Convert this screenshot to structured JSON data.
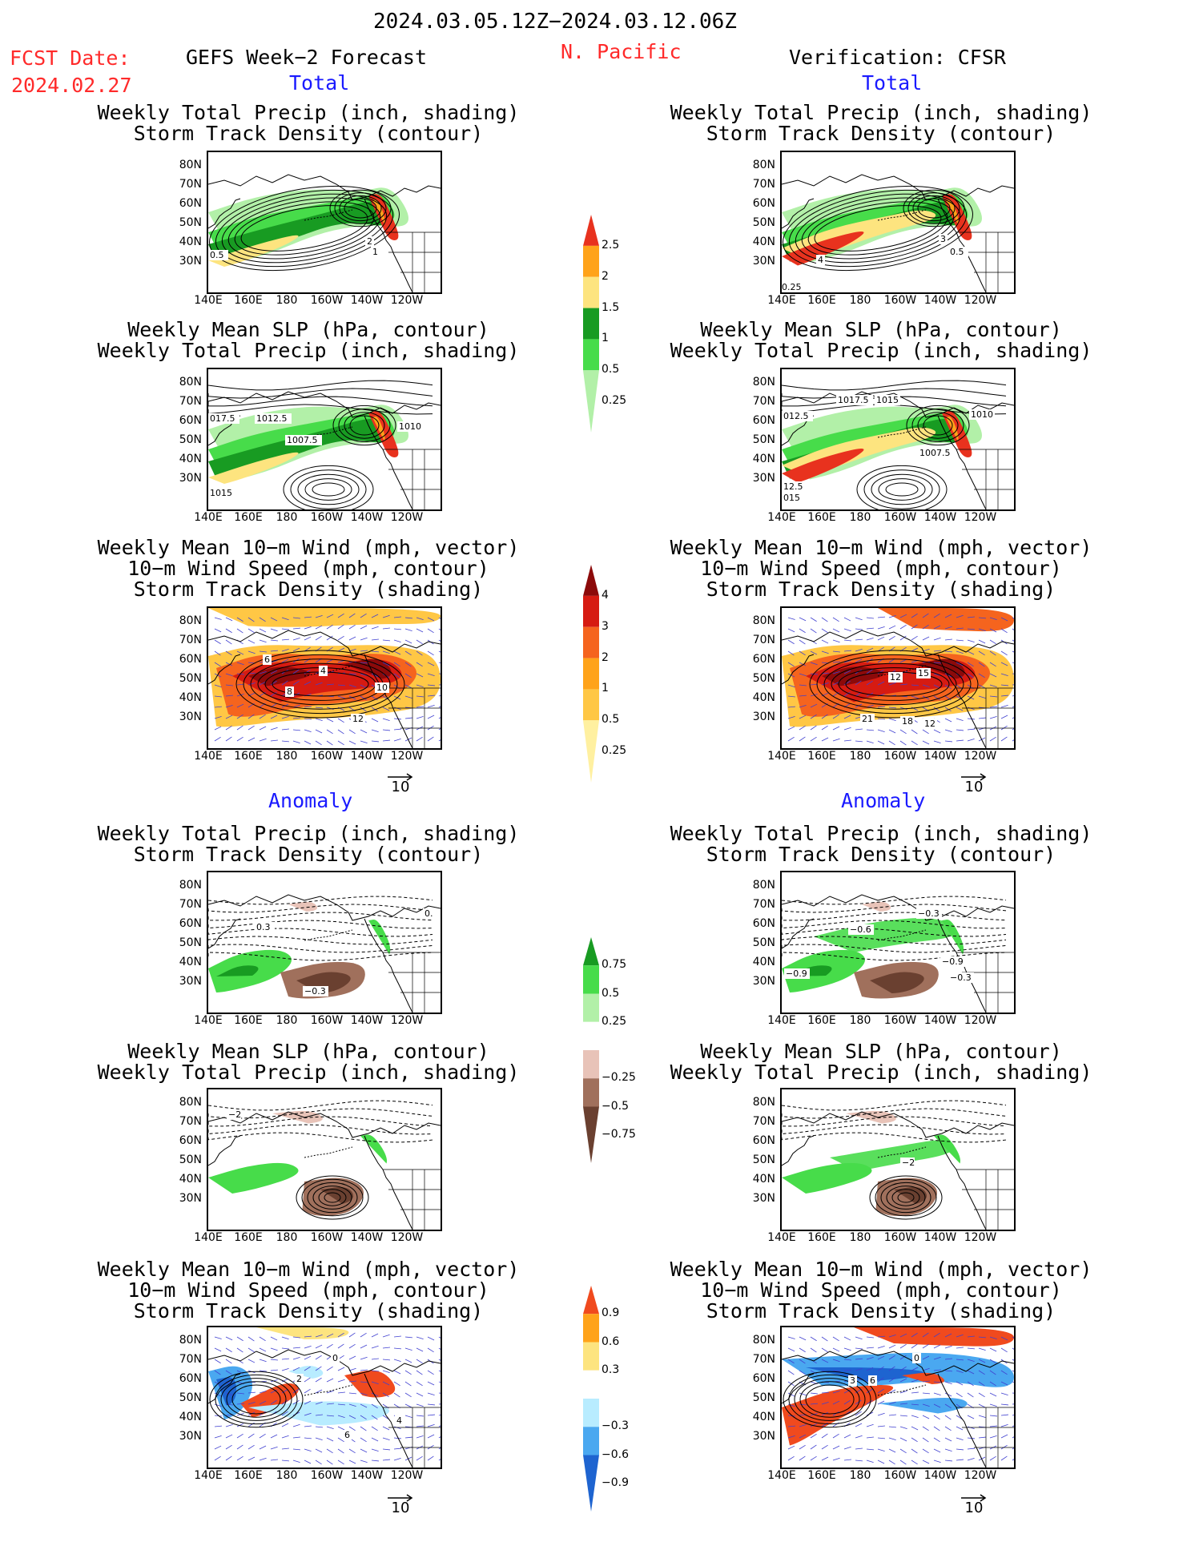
{
  "header": {
    "period": "2024.03.05.12Z−2024.03.12.06Z",
    "fcst_label": "FCST Date:",
    "fcst_date": "2024.02.27",
    "model_title": "GEFS Week−2 Forecast",
    "region": "N. Pacific",
    "verification": "Verification: CFSR"
  },
  "sections": {
    "total": "Total",
    "anomaly": "Anomaly"
  },
  "panel_titles": {
    "precip_track": [
      "Weekly Total Precip (inch, shading)",
      "Storm Track Density (contour)"
    ],
    "slp_precip": [
      "Weekly Mean SLP (hPa, contour)",
      "Weekly Total Precip (inch, shading)"
    ],
    "wind_track": [
      "Weekly Mean 10−m Wind (mph, vector)",
      "10−m Wind Speed (mph, contour)",
      "Storm Track Density (shading)"
    ]
  },
  "axes": {
    "lat": [
      "80N",
      "70N",
      "60N",
      "50N",
      "40N",
      "30N"
    ],
    "lon": [
      "140E",
      "160E",
      "180",
      "160W",
      "140W",
      "120W"
    ]
  },
  "vector_ref": "10",
  "colorbars": {
    "precip_total": {
      "labels": [
        "2.5",
        "2",
        "1.5",
        "1",
        "0.5",
        "0.25"
      ],
      "colors": [
        "#e8321e",
        "#ffa31a",
        "#fde47f",
        "#189b22",
        "#47dc4a",
        "#b2f0a8"
      ]
    },
    "track_total": {
      "labels": [
        "4",
        "3",
        "2",
        "1",
        "0.5",
        "0.25"
      ],
      "colors": [
        "#8c0a0a",
        "#d61b12",
        "#f5641e",
        "#ffa31a",
        "#ffc745",
        "#fff0a0"
      ]
    },
    "precip_anom": {
      "labels": [
        "0.75",
        "0.5",
        "0.25",
        "−0.25",
        "−0.5",
        "−0.75"
      ],
      "colors": [
        "#189b22",
        "#47dc4a",
        "#b2f0a8",
        "#ffffff",
        "#e8c3b8",
        "#a0705c",
        "#6a4030"
      ]
    },
    "track_anom": {
      "labels": [
        "0.9",
        "0.6",
        "0.3",
        "−0.3",
        "−0.6",
        "−0.9"
      ],
      "colors": [
        "#f04a1e",
        "#ffa31a",
        "#fde47f",
        "#ffffff",
        "#b8ecff",
        "#4aa8f0",
        "#1e64d0"
      ]
    }
  },
  "contour_labels": {
    "L1": [
      "0.5",
      "2",
      "1"
    ],
    "R1": [
      "4",
      "3",
      "0.25",
      "0.5"
    ],
    "L2": [
      "017.5",
      "1012.5",
      "1007.5",
      "1010",
      "1015"
    ],
    "R2": [
      "1017.5",
      "1015",
      "012.5",
      "1010",
      "1007.5",
      "12.5",
      "015"
    ],
    "L3": [
      "6",
      "8",
      "4",
      "10",
      "12"
    ],
    "R3": [
      "12",
      "15",
      "21",
      "18",
      "12"
    ],
    "L4": [
      "0.3",
      "−0.3",
      "0."
    ],
    "R4": [
      "−0.6",
      "−0.3",
      "−0.9",
      "−0.9",
      "−0.3"
    ],
    "L5": [
      "−2"
    ],
    "R5": [
      "−2"
    ],
    "L6": [
      "2",
      "6",
      "0",
      "4"
    ],
    "R6": [
      "3",
      "6",
      "0"
    ]
  }
}
